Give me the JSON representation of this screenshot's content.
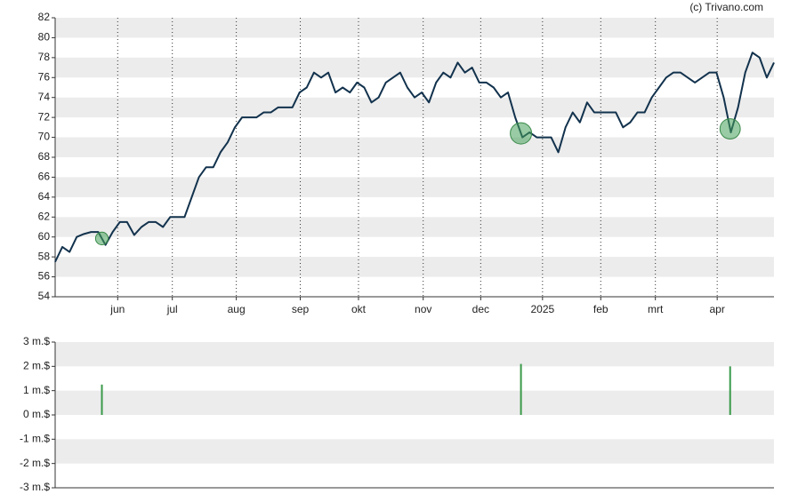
{
  "credit": "(c) Trivano.com",
  "chart_data": [
    {
      "type": "line",
      "series": [
        {
          "color": "#12324d",
          "values": [
            57.5,
            59,
            58.5,
            60,
            60.3,
            60.5,
            60.5,
            59.2,
            60.5,
            61.5,
            61.5,
            60.2,
            61,
            61.5,
            61.5,
            61,
            62,
            62,
            62,
            64,
            66,
            67,
            67,
            68.5,
            69.5,
            71,
            72,
            72,
            72,
            72.5,
            72.5,
            73,
            73,
            73,
            74.5,
            75,
            76.5,
            76,
            76.5,
            74.5,
            75,
            74.5,
            75.5,
            75,
            73.5,
            74,
            75.5,
            76,
            76.5,
            75,
            74,
            74.5,
            73.5,
            75.5,
            76.5,
            76,
            77.5,
            76.5,
            77,
            75.5,
            75.5,
            75,
            74,
            74.5,
            72,
            70,
            70.5,
            70,
            70,
            70,
            68.5,
            71,
            72.5,
            71.5,
            73.5,
            72.5,
            72.5,
            72.5,
            72.5,
            71,
            71.5,
            72.5,
            72.5,
            74,
            75,
            76,
            76.5,
            76.5,
            76,
            75.5,
            76,
            76.5,
            76.5,
            74,
            70.5,
            73,
            76.5,
            78.5,
            78,
            76,
            77.5
          ]
        }
      ],
      "xlim": [
        0,
        100
      ],
      "xticks": [
        {
          "value": 8.7,
          "label": "jun"
        },
        {
          "value": 16.3,
          "label": "jul"
        },
        {
          "value": 25.2,
          "label": "aug"
        },
        {
          "value": 34.1,
          "label": "sep"
        },
        {
          "value": 42.2,
          "label": "okt"
        },
        {
          "value": 51.2,
          "label": "nov"
        },
        {
          "value": 59.2,
          "label": "dec"
        },
        {
          "value": 67.8,
          "label": "2025"
        },
        {
          "value": 75.9,
          "label": "feb"
        },
        {
          "value": 83.5,
          "label": "mrt"
        },
        {
          "value": 92.1,
          "label": "apr"
        }
      ],
      "ylim": [
        54,
        82
      ],
      "yticks": [
        54,
        56,
        58,
        60,
        62,
        64,
        66,
        68,
        70,
        72,
        74,
        76,
        78,
        80,
        82
      ]
    },
    {
      "type": "bar",
      "color": "#3a9a4a",
      "x": [
        6.5,
        64.8,
        93.9
      ],
      "values": [
        1.25,
        2.1,
        2.0
      ],
      "xlim": [
        0,
        100
      ],
      "ylim": [
        -3,
        3
      ],
      "yticks": [
        {
          "value": -3,
          "label": "-3 m.$"
        },
        {
          "value": -2,
          "label": "-2 m.$"
        },
        {
          "value": -1,
          "label": "-1 m.$"
        },
        {
          "value": 0,
          "label": "0 m.$"
        },
        {
          "value": 1,
          "label": "1 m.$"
        },
        {
          "value": 2,
          "label": "2 m.$"
        },
        {
          "value": 3,
          "label": "3 m.$"
        }
      ]
    }
  ]
}
